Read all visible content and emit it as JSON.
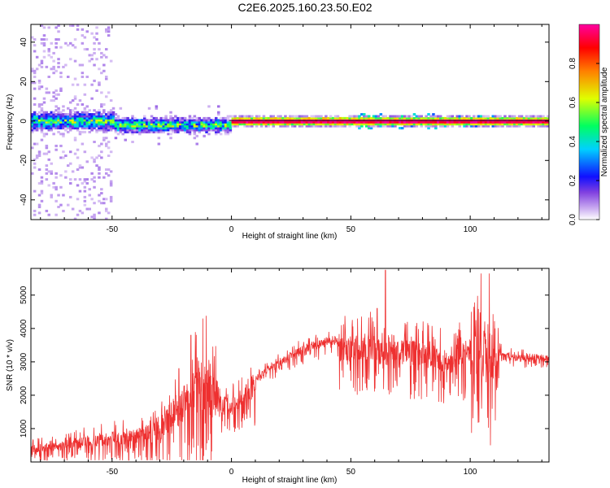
{
  "title": "C2E6.2025.160.23.50.E02",
  "chart_data": [
    {
      "type": "heatmap",
      "xlabel": "Height of straight line (km)",
      "ylabel": "Frequency (Hz)",
      "xlim": [
        -84,
        133
      ],
      "ylim": [
        -50,
        49
      ],
      "xticks": [
        -50,
        0,
        50,
        100
      ],
      "yticks": [
        -40,
        -20,
        0,
        20,
        40
      ],
      "grid": false,
      "colorbar": {
        "label": "Normalized spectral amplitude",
        "range": [
          0,
          1
        ],
        "ticks": [
          0.0,
          0.2,
          0.4,
          0.6,
          0.8
        ],
        "colors": [
          "#ffffff",
          "#c8a8f0",
          "#8040e0",
          "#1010ff",
          "#00d0ff",
          "#00ff60",
          "#e0ff00",
          "#ff8000",
          "#ff0000",
          "#ff00a0"
        ]
      },
      "band_segments": [
        {
          "x": [
            -84,
            -50
          ],
          "center": 0,
          "halfwidth": 5,
          "peak": 0.5
        },
        {
          "x": [
            -50,
            -1
          ],
          "center": -2,
          "halfwidth": 4,
          "peak": 0.4
        },
        {
          "x": [
            -1,
            133
          ],
          "center": 0,
          "halfwidth": 2,
          "peak": 1.0
        }
      ]
    },
    {
      "type": "line",
      "xlabel": "Height of straight line (km)",
      "ylabel": "SNR (10 * v/v)",
      "xlim": [
        -84,
        133
      ],
      "ylim": [
        0,
        5800
      ],
      "xticks": [
        -50,
        0,
        50,
        100
      ],
      "yticks": [
        1000,
        2000,
        3000,
        4000,
        5000
      ],
      "grid": false,
      "series": [
        {
          "color": "#ee3030",
          "envelope": {
            "x": [
              -84,
              -70,
              -60,
              -50,
              -40,
              -30,
              -25,
              -20,
              -15,
              -10,
              -5,
              0,
              5,
              10,
              20,
              30,
              40,
              50,
              55,
              60,
              64,
              66,
              70,
              80,
              90,
              100,
              104,
              108,
              110,
              115,
              120,
              125,
              133
            ],
            "y": [
              500,
              650,
              800,
              900,
              1000,
              1300,
              1900,
              2300,
              2800,
              3200,
              2300,
              1900,
              2300,
              2600,
              3100,
              3500,
              3750,
              3850,
              3900,
              3800,
              3500,
              3900,
              3700,
              3600,
              3400,
              3700,
              4000,
              3900,
              3500,
              3300,
              3200,
              3250,
              3200
            ]
          },
          "spikes": [
            {
              "x": -22,
              "y": 2800
            },
            {
              "x": -17,
              "y": 3800
            },
            {
              "x": -12,
              "y": 4300
            },
            {
              "x": 61,
              "y": 4600
            },
            {
              "x": 64.5,
              "y": 5750
            },
            {
              "x": 104.5,
              "y": 5650
            },
            {
              "x": 108,
              "y": 5650
            },
            {
              "x": 108.5,
              "y": 500
            }
          ]
        }
      ]
    }
  ]
}
